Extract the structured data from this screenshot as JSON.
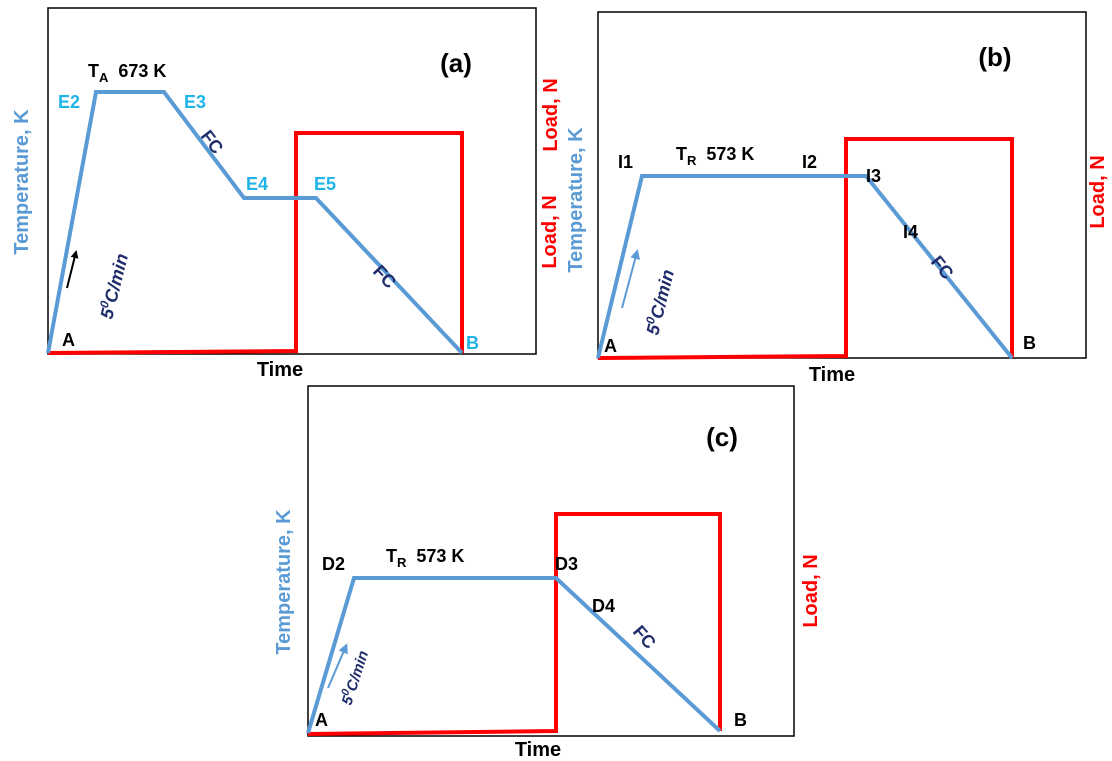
{
  "colors": {
    "temperature": "#5b9bd5",
    "load": "#ff0000",
    "text": "#000000",
    "light_label": "#1fb4e8",
    "navy": "#1f2d6b"
  },
  "panels": [
    {
      "id": "a",
      "title": "(a)",
      "y_axis_left": "Temperature, K",
      "y_axis_right": "Load, N",
      "x_axis": "Time",
      "hold_temperature": {
        "symbol": "T",
        "subscript": "A",
        "value": "673 K"
      },
      "rate": {
        "base": "5",
        "sup": "0",
        "unit": "C/min"
      },
      "cooling": "FC",
      "points": [
        "A",
        "E2",
        "E3",
        "E4",
        "E5",
        "B"
      ]
    },
    {
      "id": "b",
      "title": "(b)",
      "y_axis_left": "Temperature, K",
      "y_axis_right": "Load, N",
      "x_axis": "Time",
      "hold_temperature": {
        "symbol": "T",
        "subscript": "R",
        "value": "573 K"
      },
      "rate": {
        "base": "5",
        "sup": "0",
        "unit": "C/min"
      },
      "cooling": "FC",
      "points": [
        "A",
        "I1",
        "I2",
        "I3",
        "I4",
        "B"
      ]
    },
    {
      "id": "c",
      "title": "(c)",
      "y_axis_left": "Temperature, K",
      "y_axis_right": "Load, N",
      "x_axis": "Time",
      "hold_temperature": {
        "symbol": "T",
        "subscript": "R",
        "value": "573 K"
      },
      "rate": {
        "base": "5",
        "sup": "0",
        "unit": "C/min"
      },
      "cooling": "FC",
      "points": [
        "A",
        "D2",
        "D3",
        "D4",
        "B"
      ]
    }
  ]
}
